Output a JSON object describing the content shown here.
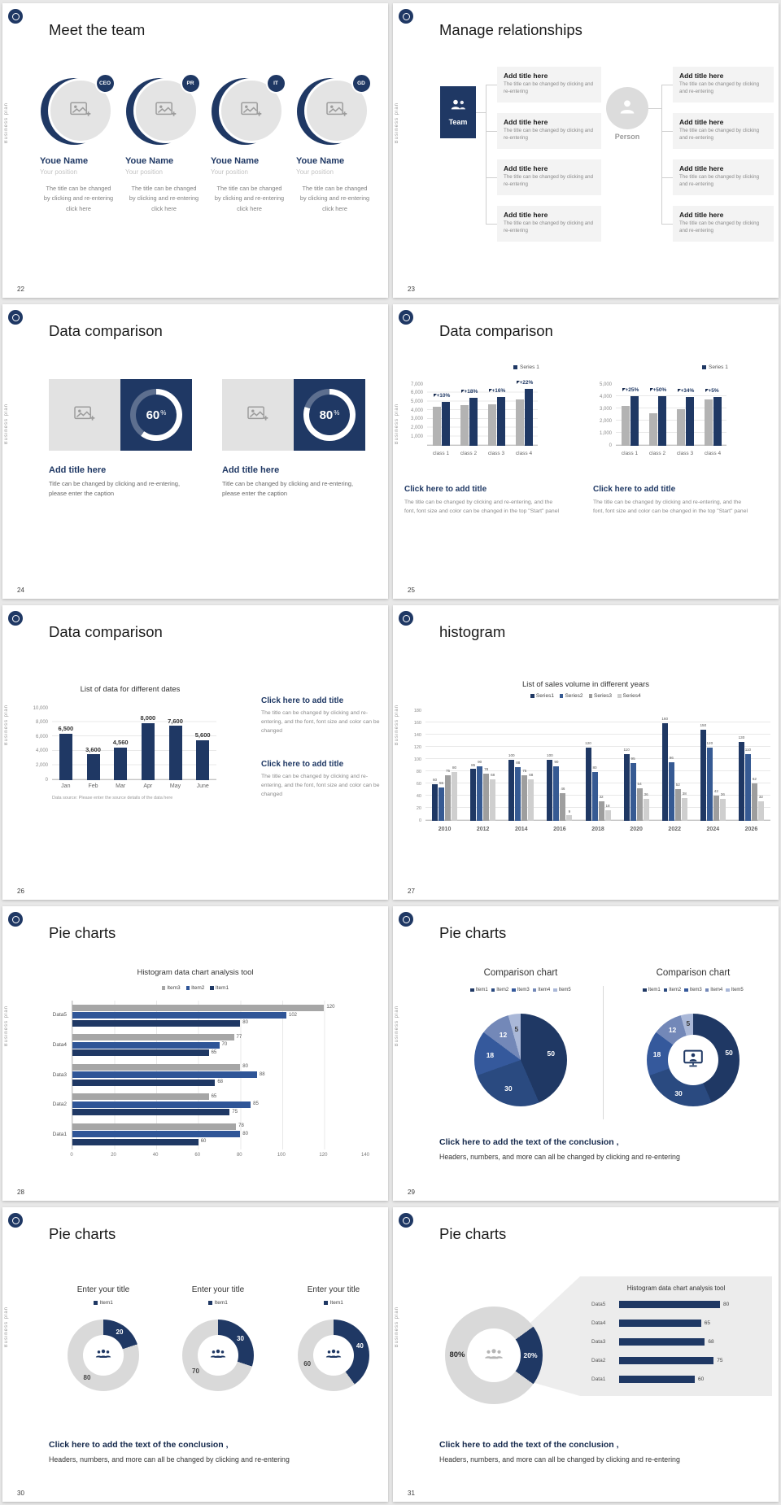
{
  "page": {
    "vertical_label": "Business plan"
  },
  "colors": {
    "navy": "#1f3864",
    "navy_mid": "#2f5597",
    "bar_gray": "#b3b3b3",
    "donut_rest": "#d9d9d9",
    "series27": [
      "#1f3864",
      "#365a93",
      "#9e9e9e",
      "#cfcfcf"
    ],
    "series28": [
      "#a6a6a6",
      "#2f5597",
      "#1f3864"
    ],
    "pie29": [
      "#1f3864",
      "#2a4a80",
      "#35599c",
      "#7388b8",
      "#aab8d8"
    ]
  },
  "slides": {
    "s22": {
      "page_number": "22",
      "title": "Meet the team",
      "members": [
        {
          "badge": "CEO",
          "name": "Youe Name",
          "position": "Your position",
          "desc": "The title can be changed by clicking and re-entering click here"
        },
        {
          "badge": "PR",
          "name": "Youe Name",
          "position": "Your position",
          "desc": "The title can be changed by clicking and re-entering click here"
        },
        {
          "badge": "IT",
          "name": "Youe Name",
          "position": "Your position",
          "desc": "The title can be changed by clicking and re-entering click here"
        },
        {
          "badge": "GD",
          "name": "Youe Name",
          "position": "Your position",
          "desc": "The title can be changed by clicking and re-entering click here"
        }
      ]
    },
    "s23": {
      "page_number": "23",
      "title": "Manage relationships",
      "team_label": "Team",
      "person_label": "Person",
      "box_title": "Add title here",
      "box_text": "The title can be changed by clicking and re-entering"
    },
    "s24": {
      "page_number": "24",
      "title": "Data comparison",
      "panels": [
        {
          "value": "60",
          "unit": "%",
          "heading": "Add title here",
          "body": "Title can be changed by clicking and re-entering, please enter the caption"
        },
        {
          "value": "80",
          "unit": "%",
          "heading": "Add title here",
          "body": "Title can be changed by clicking and re-entering, please enter the caption"
        }
      ]
    },
    "s25": {
      "page_number": "25",
      "title": "Data comparison",
      "charts": [
        {
          "type": "bar",
          "legend": "Series 1",
          "yticks": [
            "7,000",
            "6,000",
            "5,000",
            "4,000",
            "3,000",
            "2,000",
            "1,000"
          ],
          "ymax": 7000,
          "ydiv": 7,
          "categories": [
            "class 1",
            "class 2",
            "class 3",
            "class 4"
          ],
          "base_values": [
            4500,
            4700,
            4800,
            5300
          ],
          "accent_values": [
            5000,
            5550,
            5570,
            6500
          ],
          "pct_labels": [
            "+10%",
            "+18%",
            "+16%",
            "+22%"
          ],
          "heading": "Click here to add title",
          "body": "The title can be changed by clicking and re-entering, and the font, font size and color can be changed in the top \"Start\" panel"
        },
        {
          "type": "bar",
          "legend": "Series 1",
          "yticks": [
            "5,000",
            "4,000",
            "3,000",
            "2,000",
            "1,000",
            "0"
          ],
          "ymax": 5000,
          "ydiv": 5,
          "categories": [
            "class 1",
            "class 2",
            "class 3",
            "class 4"
          ],
          "base_values": [
            3300,
            2700,
            3000,
            3800
          ],
          "accent_values": [
            4100,
            4050,
            4000,
            4000
          ],
          "pct_labels": [
            "+25%",
            "+50%",
            "+34%",
            "+5%"
          ],
          "heading": "Click here to add title",
          "body": "The title can be changed by clicking and re-entering, and the font, font size and color can be changed in the top \"Start\" panel"
        }
      ]
    },
    "s26": {
      "page_number": "26",
      "title": "Data comparison",
      "chart": {
        "type": "bar",
        "title": "List of data for different dates",
        "yticks": [
          "10,000",
          "8,000",
          "6,000",
          "4,000",
          "2,000",
          "0"
        ],
        "ymax": 10000,
        "ydiv": 5,
        "categories": [
          "Jan",
          "Feb",
          "Mar",
          "Apr",
          "May",
          "June"
        ],
        "values": [
          6500,
          3600,
          4560,
          8000,
          7600,
          5600
        ],
        "value_labels": [
          "6,500",
          "3,600",
          "4,560",
          "8,000",
          "7,600",
          "5,600"
        ],
        "source": "Data source: Please enter the source details of the data here"
      },
      "blocks": [
        {
          "heading": "Click here to add title",
          "body": "The title can be changed by clicking and re-entering, and the font, font size and color can be changed"
        },
        {
          "heading": "Click here to add title",
          "body": "The title can be changed by clicking and re-entering, and the font, font size and color can be changed"
        }
      ]
    },
    "s27": {
      "page_number": "27",
      "title": "histogram",
      "chart": {
        "type": "bar",
        "title": "List of sales volume in different years",
        "legend": [
          "Series1",
          "Series2",
          "Series3",
          "Series4"
        ],
        "yticks": [
          "180",
          "160",
          "140",
          "120",
          "100",
          "80",
          "60",
          "40",
          "20",
          "0"
        ],
        "ymax": 180,
        "ydiv": 9,
        "categories": [
          "2010",
          "2012",
          "2014",
          "2016",
          "2018",
          "2020",
          "2022",
          "2024",
          "2026"
        ],
        "series": [
          {
            "name": "Series1",
            "values": [
              60,
              85,
              100,
              100,
              120,
              110,
              160,
              150,
              130
            ]
          },
          {
            "name": "Series2",
            "values": [
              55,
              90,
              88,
              90,
              80,
              95,
              96,
              120,
              110
            ]
          },
          {
            "name": "Series3",
            "values": [
              75,
              78,
              75,
              46,
              32,
              54,
              52,
              42,
              62
            ]
          },
          {
            "name": "Series4",
            "values": [
              80,
              68,
              68,
              9,
              18,
              36,
              38,
              36,
              32
            ]
          }
        ]
      }
    },
    "s28": {
      "page_number": "28",
      "title": "Pie charts",
      "chart": {
        "type": "hbar",
        "title": "Histogram data chart analysis tool",
        "legend": [
          "Item3",
          "Item2",
          "Item1"
        ],
        "categories": [
          "Data5",
          "Data4",
          "Data3",
          "Data2",
          "Data1"
        ],
        "xticks": [
          "0",
          "20",
          "40",
          "60",
          "80",
          "100",
          "120",
          "140"
        ],
        "xmax": 140,
        "series": [
          {
            "name": "Item3",
            "values": [
              120,
              77,
              80,
              65,
              78
            ]
          },
          {
            "name": "Item2",
            "values": [
              102,
              70,
              88,
              85,
              80
            ]
          },
          {
            "name": "Item1",
            "values": [
              80,
              65,
              68,
              75,
              60
            ]
          }
        ]
      }
    },
    "s29": {
      "page_number": "29",
      "title": "Pie charts",
      "pie": {
        "type": "pie",
        "title": "Comparison chart",
        "legend": [
          "Item1",
          "Item2",
          "Item3",
          "Item4",
          "Item5"
        ],
        "values": [
          50,
          30,
          18,
          12,
          5
        ]
      },
      "donut": {
        "type": "pie",
        "title": "Comparison chart",
        "legend": [
          "Item1",
          "Item2",
          "Item3",
          "Item4",
          "Item5"
        ],
        "values": [
          50,
          30,
          18,
          12,
          5
        ]
      },
      "conclusion_heading": "Click here to add the text of the conclusion ,",
      "conclusion_body": "Headers, numbers, and more can all be changed by clicking and re-entering"
    },
    "s30": {
      "page_number": "30",
      "title": "Pie charts",
      "donuts": [
        {
          "title": "Enter your title",
          "legend": "Item1",
          "value": 20,
          "rest": 80
        },
        {
          "title": "Enter your title",
          "legend": "Item1",
          "value": 30,
          "rest": 70
        },
        {
          "title": "Enter your title",
          "legend": "Item1",
          "value": 40,
          "rest": 60
        }
      ],
      "conclusion_heading": "Click here to add the text of the conclusion ,",
      "conclusion_body": "Headers, numbers, and more can all be changed by clicking and re-entering"
    },
    "s31": {
      "page_number": "31",
      "title": "Pie charts",
      "donut": {
        "value": 20,
        "value_label": "20%",
        "rest_label": "80%"
      },
      "panel": {
        "type": "hbar",
        "title": "Histogram data chart analysis tool",
        "categories": [
          "Data5",
          "Data4",
          "Data3",
          "Data2",
          "Data1"
        ],
        "values": [
          80,
          65,
          68,
          75,
          60
        ]
      },
      "conclusion_heading": "Click here to add the text of the conclusion ,",
      "conclusion_body": "Headers, numbers, and more can all be changed by clicking and re-entering"
    }
  }
}
